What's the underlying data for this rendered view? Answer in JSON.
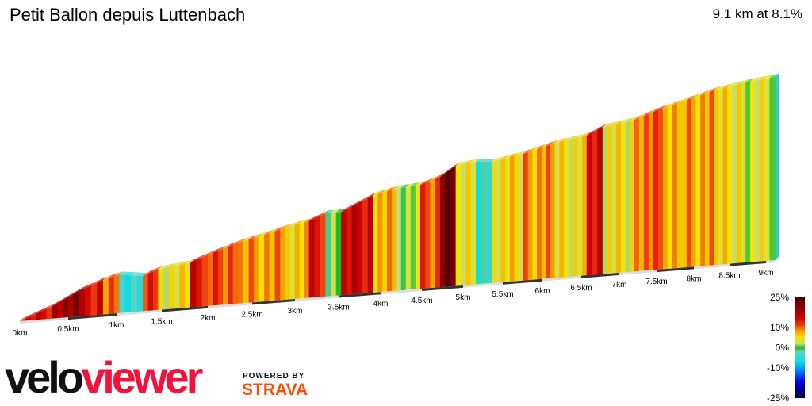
{
  "header": {
    "title": "Petit Ballon depuis Luttenbach",
    "summary": "9.1 km at 8.1%"
  },
  "branding": {
    "logo_part1": "velo",
    "logo_part2": "viewer",
    "powered_by": "POWERED BY",
    "strava": "STRAVA",
    "logo_colors": {
      "velo": "#111111",
      "viewer": "#f0143c",
      "strava": "#fc4c02"
    }
  },
  "chart_data": {
    "type": "area",
    "style": "3d elevation profile colored by gradient",
    "xlabel": "",
    "ylabel": "",
    "xlim": [
      0,
      9.1
    ],
    "x_ticks": [
      "0km",
      "0.5km",
      "1km",
      "1.5km",
      "2km",
      "2.5km",
      "3km",
      "3.5km",
      "4km",
      "4.5km",
      "5km",
      "5.5km",
      "6km",
      "6.5km",
      "7km",
      "7.5km",
      "8km",
      "8.5km",
      "9km"
    ],
    "x_tick_values": [
      0,
      0.5,
      1,
      1.5,
      2,
      2.5,
      3,
      3.5,
      4,
      4.5,
      5,
      5.5,
      6,
      6.5,
      7,
      7.5,
      8,
      8.5,
      9
    ],
    "x_km": [
      0,
      0.33,
      0.61,
      0.86,
      1.03,
      1.29,
      1.46,
      1.81,
      2.0,
      2.34,
      2.7,
      2.89,
      3.16,
      3.35,
      3.53,
      3.91,
      4.19,
      4.48,
      4.72,
      4.91,
      5.16,
      5.36,
      5.76,
      6.16,
      6.57,
      6.78,
      7.2,
      7.52,
      7.84,
      8.28,
      8.72,
      9.1
    ],
    "relative_elevation_m": [
      0,
      48,
      102,
      138,
      154,
      141,
      163,
      179,
      205,
      243,
      272,
      290,
      307,
      333,
      333,
      390,
      410,
      416,
      442,
      483,
      492,
      486,
      508,
      541,
      560,
      589,
      608,
      640,
      665,
      700,
      722,
      735
    ],
    "legend": {
      "labels": [
        "25%",
        "10%",
        "0%",
        "-10%",
        "-25%"
      ],
      "values": [
        25,
        10,
        0,
        -10,
        -25
      ],
      "position": "bottom-right"
    },
    "color_scale": [
      {
        "grade": -25,
        "color": "#00003c"
      },
      {
        "grade": -17,
        "color": "#0000e0"
      },
      {
        "grade": -12,
        "color": "#0070ff"
      },
      {
        "grade": -7,
        "color": "#00e0e8"
      },
      {
        "grade": -2,
        "color": "#60d0c0"
      },
      {
        "grade": 0,
        "color": "#18c018"
      },
      {
        "grade": 2,
        "color": "#c8dc70"
      },
      {
        "grade": 5,
        "color": "#f4e400"
      },
      {
        "grade": 8,
        "color": "#f5a800"
      },
      {
        "grade": 11,
        "color": "#f04010"
      },
      {
        "grade": 15,
        "color": "#d00000"
      },
      {
        "grade": 25,
        "color": "#4a0000"
      }
    ]
  }
}
